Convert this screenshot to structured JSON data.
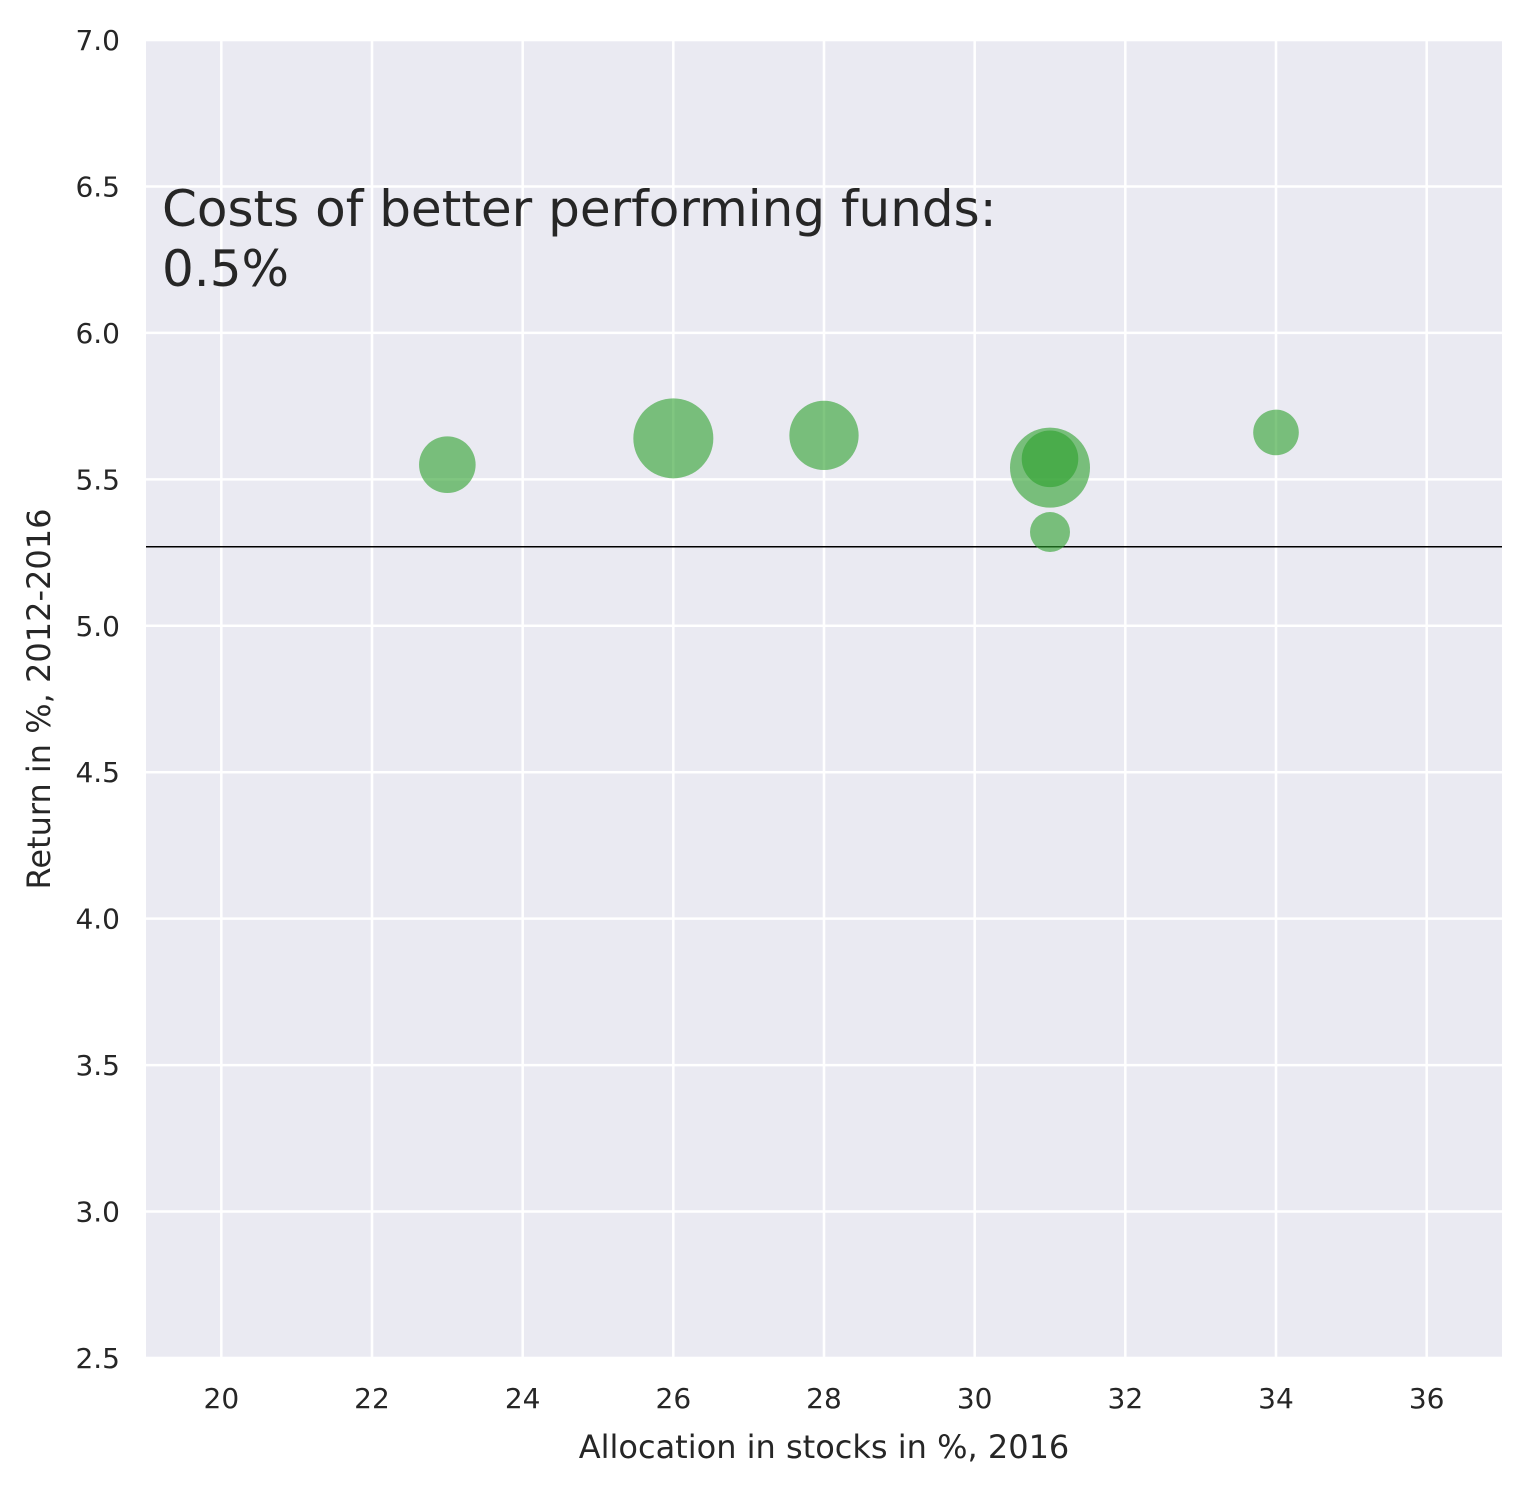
{
  "chart_data": {
    "type": "scatter",
    "xlabel": "Allocation in stocks in %, 2016",
    "ylabel": "Return in %, 2012-2016",
    "xlim": [
      19,
      37
    ],
    "ylim": [
      2.5,
      7.0
    ],
    "xticks": [
      "20",
      "22",
      "24",
      "26",
      "28",
      "30",
      "32",
      "34",
      "36"
    ],
    "yticks": [
      "2.5",
      "3.0",
      "3.5",
      "4.0",
      "4.5",
      "5.0",
      "5.5",
      "6.0",
      "6.5",
      "7.0"
    ],
    "grid": true,
    "reference_line_y": 5.27,
    "annotation": [
      "Costs of better performing funds:",
      "0.5%"
    ],
    "point_color": "#2ca02c",
    "background_color": "#eaeaf2",
    "points": [
      {
        "x": 23,
        "y": 5.55,
        "size": 2
      },
      {
        "x": 26,
        "y": 5.64,
        "size": 4
      },
      {
        "x": 28,
        "y": 5.65,
        "size": 3
      },
      {
        "x": 31,
        "y": 5.54,
        "size": 4
      },
      {
        "x": 31,
        "y": 5.57,
        "size": 2
      },
      {
        "x": 31,
        "y": 5.32,
        "size": 1
      },
      {
        "x": 34,
        "y": 5.66,
        "size": 1.3
      }
    ]
  }
}
